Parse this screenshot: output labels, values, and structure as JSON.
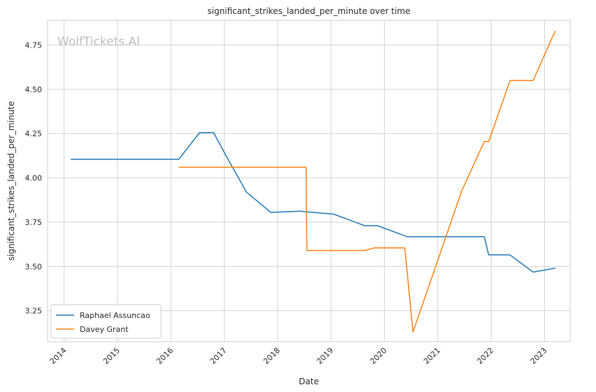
{
  "watermark": "WolfTickets.AI",
  "chart_data": {
    "type": "line",
    "title": "significant_strikes_landed_per_minute over time",
    "xlabel": "Date",
    "ylabel": "significant_strikes_landed_per_minute",
    "xlim": [
      "2013-09-10",
      "2023-06-25"
    ],
    "ylim": [
      3.075,
      4.89
    ],
    "x_ticks": [
      "2014",
      "2015",
      "2016",
      "2017",
      "2018",
      "2019",
      "2020",
      "2021",
      "2022",
      "2023"
    ],
    "y_ticks": [
      "3.25",
      "3.50",
      "3.75",
      "4.00",
      "4.25",
      "4.50",
      "4.75"
    ],
    "grid": true,
    "legend_position": "lower-left",
    "series": [
      {
        "name": "Raphael Assuncao",
        "color": "#1f77b4",
        "points": [
          [
            "2014-02-15",
            4.105
          ],
          [
            "2016-02-25",
            4.105
          ],
          [
            "2016-07-15",
            4.255
          ],
          [
            "2016-10-20",
            4.255
          ],
          [
            "2017-01-10",
            4.13
          ],
          [
            "2017-06-01",
            3.92
          ],
          [
            "2017-11-15",
            3.805
          ],
          [
            "2018-06-01",
            3.812
          ],
          [
            "2019-01-20",
            3.795
          ],
          [
            "2019-08-20",
            3.73
          ],
          [
            "2019-11-15",
            3.73
          ],
          [
            "2020-06-05",
            3.668
          ],
          [
            "2021-11-15",
            3.668
          ],
          [
            "2021-12-15",
            3.565
          ],
          [
            "2022-05-10",
            3.565
          ],
          [
            "2022-10-15",
            3.468
          ],
          [
            "2023-03-15",
            3.49
          ]
        ]
      },
      {
        "name": "Davey Grant",
        "color": "#ff7f0e",
        "points": [
          [
            "2016-02-25",
            4.06
          ],
          [
            "2018-07-15",
            4.06
          ],
          [
            "2018-07-20",
            3.59
          ],
          [
            "2019-08-20",
            3.59
          ],
          [
            "2019-10-25",
            3.605
          ],
          [
            "2020-05-20",
            3.605
          ],
          [
            "2020-07-15",
            3.13
          ],
          [
            "2021-06-15",
            3.93
          ],
          [
            "2021-11-15",
            4.205
          ],
          [
            "2021-12-15",
            4.205
          ],
          [
            "2022-05-10",
            4.55
          ],
          [
            "2022-10-15",
            4.55
          ],
          [
            "2023-03-15",
            4.83
          ]
        ]
      }
    ]
  }
}
